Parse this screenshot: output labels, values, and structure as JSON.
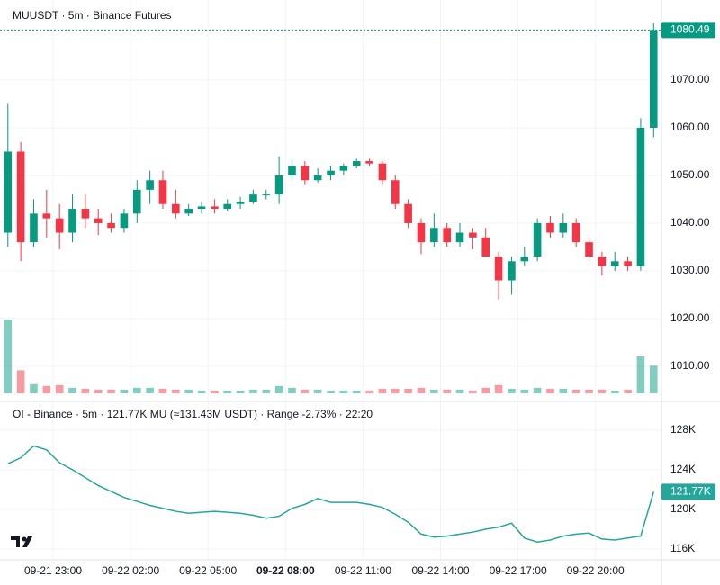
{
  "chart_data": [
    {
      "type": "candlestick",
      "title": "MUUSDT · 5m · Binance Futures",
      "x": [
        null,
        null,
        null,
        null,
        "09-21 23:00",
        null,
        null,
        null,
        null,
        null,
        "09-22 02:00",
        null,
        null,
        null,
        null,
        null,
        "09-22 05:00",
        null,
        null,
        null,
        null,
        null,
        "09-22 08:00",
        null,
        null,
        null,
        null,
        null,
        "09-22 11:00",
        null,
        null,
        null,
        null,
        null,
        "09-22 14:00",
        null,
        null,
        null,
        null,
        null,
        "09-22 17:00",
        null,
        null,
        null,
        null,
        null,
        "09-22 20:00",
        null,
        null,
        null,
        null
      ],
      "x_bold": "09-22 08:00",
      "open": [
        1038,
        1055,
        1036,
        1042,
        1041,
        1038,
        1043,
        1041,
        1040,
        1039,
        1042,
        1047,
        1049,
        1044,
        1042,
        1043,
        1043.5,
        1043,
        1044,
        1044.5,
        1046,
        1046,
        1050,
        1052,
        1049,
        1050,
        1051,
        1052,
        1053,
        1052.5,
        1049,
        1044,
        1040,
        1036,
        1039,
        1036,
        1038,
        1037,
        1033,
        1028,
        1032,
        1033,
        1040,
        1038,
        1040,
        1036,
        1033,
        1031,
        1032,
        1031,
        1060
      ],
      "high": [
        1065,
        1057,
        1045,
        1047,
        1044,
        1046,
        1046,
        1043,
        1042,
        1043,
        1049,
        1051,
        1051,
        1047,
        1044,
        1044.5,
        1045,
        1045,
        1045.5,
        1047,
        1047,
        1054,
        1053.5,
        1053,
        1051.5,
        1052,
        1052.5,
        1053.5,
        1053.5,
        1053,
        1050,
        1045,
        1041,
        1042,
        1040,
        1040,
        1039,
        1039,
        1034,
        1033,
        1035,
        1041,
        1041.5,
        1042,
        1041,
        1037,
        1034,
        1034,
        1033,
        1062,
        1082
      ],
      "low": [
        1035,
        1032,
        1035,
        1037,
        1034.5,
        1036,
        1039,
        1037.5,
        1038,
        1038,
        1040,
        1044,
        1043,
        1041,
        1041.5,
        1042,
        1042,
        1042.5,
        1043,
        1044,
        1045,
        1044,
        1049,
        1048,
        1048.5,
        1049,
        1050,
        1051.5,
        1052,
        1048,
        1043,
        1039,
        1033.5,
        1035,
        1035,
        1035,
        1034.5,
        1033,
        1024,
        1025,
        1031,
        1032,
        1037,
        1037,
        1035,
        1032,
        1029,
        1030,
        1030,
        1030,
        1058
      ],
      "close": [
        1055,
        1036,
        1042,
        1041,
        1038,
        1043,
        1041,
        1040,
        1039,
        1042,
        1047,
        1049,
        1044,
        1042,
        1043,
        1043.5,
        1043,
        1044,
        1044.5,
        1046,
        1046,
        1050,
        1052,
        1049,
        1050,
        1051,
        1052,
        1053,
        1052.5,
        1049,
        1044,
        1040,
        1036,
        1039,
        1036,
        1038,
        1037,
        1033,
        1028,
        1032,
        1033,
        1040,
        1038,
        1040,
        1036,
        1033,
        1031,
        1032,
        1031,
        1060,
        1080.49
      ],
      "volume": [
        80,
        25,
        10,
        8,
        9,
        6,
        5,
        4,
        4,
        4,
        6,
        6,
        5,
        4,
        4,
        3,
        3,
        3,
        3,
        4,
        4,
        8,
        6,
        4,
        4,
        3,
        3,
        3,
        3,
        5,
        5,
        5,
        6,
        4,
        4,
        4,
        3,
        6,
        9,
        5,
        4,
        6,
        5,
        5,
        4,
        4,
        4,
        3,
        4,
        40,
        30
      ],
      "up_color": "#089981",
      "down_color": "#f23645",
      "ylim": [
        1002.8,
        1086.8
      ],
      "yticks": [
        {
          "value": 1010,
          "label": "1010.00"
        },
        {
          "value": 1020,
          "label": "1020.00"
        },
        {
          "value": 1030,
          "label": "1030.00"
        },
        {
          "value": 1040,
          "label": "1040.00"
        },
        {
          "value": 1050,
          "label": "1050.00"
        },
        {
          "value": 1060,
          "label": "1060.00"
        },
        {
          "value": 1070,
          "label": "1070.00"
        }
      ],
      "last_price": 1080.49,
      "grid": true
    },
    {
      "type": "line",
      "title": "OI - Binance · 5m · 121.77K MU (≈131.43M USDT) · Range -2.73% · 22:20",
      "color": "#26a69a",
      "values": [
        124600,
        125200,
        126400,
        126000,
        124700,
        124000,
        123200,
        122400,
        121800,
        121200,
        120800,
        120400,
        120100,
        119800,
        119600,
        119700,
        119800,
        119700,
        119600,
        119400,
        119100,
        119300,
        120100,
        120500,
        121100,
        120700,
        120700,
        120700,
        120500,
        120200,
        119500,
        118700,
        117500,
        117200,
        117300,
        117500,
        117700,
        118000,
        118200,
        118600,
        117100,
        116700,
        116900,
        117300,
        117500,
        117600,
        117000,
        116900,
        117100,
        117300,
        121770
      ],
      "ylim": [
        114900,
        130800
      ],
      "yticks": [
        {
          "value": 116000,
          "label": "116K"
        },
        {
          "value": 120000,
          "label": "120K"
        },
        {
          "value": 124000,
          "label": "124K"
        },
        {
          "value": 128000,
          "label": "128K"
        }
      ],
      "last_value": {
        "value": 121770,
        "label": "121.77K"
      },
      "grid": true
    }
  ]
}
